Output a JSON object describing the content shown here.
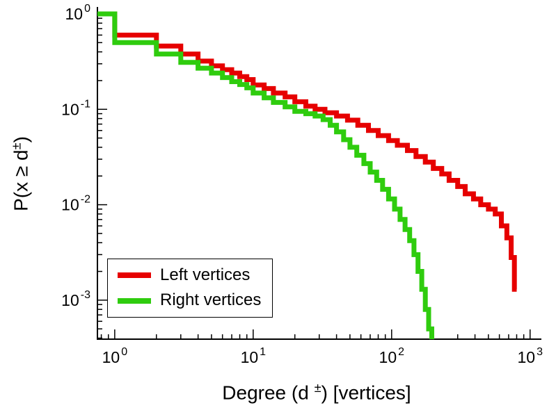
{
  "figure": {
    "background": "#ffffff"
  },
  "chart_data": {
    "type": "line",
    "subtype": "step-ccdf",
    "title": "",
    "x_scale": "log",
    "y_scale": "log",
    "grid": false,
    "legend_position": "lower-left",
    "xlim": [
      0.75,
      1100
    ],
    "ylim": [
      0.00039,
      1.0
    ],
    "xlabel_parts": {
      "prefix": "Degree (d ",
      "sup": "±",
      "suffix": ") [vertices]"
    },
    "ylabel_parts": {
      "prefix": "P(x ≥ d",
      "sup": "±",
      "suffix": ")"
    },
    "x_ticks": [
      {
        "value": 1,
        "base": "10",
        "exp": "0"
      },
      {
        "value": 10,
        "base": "10",
        "exp": "1"
      },
      {
        "value": 100,
        "base": "10",
        "exp": "2"
      },
      {
        "value": 1000,
        "base": "10",
        "exp": "3"
      }
    ],
    "y_ticks": [
      {
        "value": 1,
        "base": "10",
        "exp": "0"
      },
      {
        "value": 0.1,
        "base": "10",
        "exp": "-1"
      },
      {
        "value": 0.01,
        "base": "10",
        "exp": "-2"
      },
      {
        "value": 0.001,
        "base": "10",
        "exp": "-3"
      }
    ],
    "series": [
      {
        "id": "left-vertices",
        "name": "Left vertices",
        "color": "#e60000",
        "points": [
          [
            1,
            1.0
          ],
          [
            2,
            0.6
          ],
          [
            3,
            0.46
          ],
          [
            4,
            0.38
          ],
          [
            5,
            0.32
          ],
          [
            6,
            0.285
          ],
          [
            7,
            0.26
          ],
          [
            8,
            0.24
          ],
          [
            9,
            0.22
          ],
          [
            10,
            0.205
          ],
          [
            12,
            0.18
          ],
          [
            14,
            0.165
          ],
          [
            17,
            0.148
          ],
          [
            20,
            0.135
          ],
          [
            24,
            0.12
          ],
          [
            28,
            0.108
          ],
          [
            33,
            0.1
          ],
          [
            40,
            0.092
          ],
          [
            48,
            0.085
          ],
          [
            57,
            0.077
          ],
          [
            68,
            0.068
          ],
          [
            80,
            0.06
          ],
          [
            95,
            0.053
          ],
          [
            110,
            0.047
          ],
          [
            130,
            0.042
          ],
          [
            150,
            0.037
          ],
          [
            175,
            0.032
          ],
          [
            200,
            0.028
          ],
          [
            230,
            0.024
          ],
          [
            260,
            0.021
          ],
          [
            300,
            0.018
          ],
          [
            340,
            0.0155
          ],
          [
            390,
            0.013
          ],
          [
            440,
            0.0115
          ],
          [
            500,
            0.01
          ],
          [
            560,
            0.009
          ],
          [
            620,
            0.008
          ],
          [
            680,
            0.006
          ],
          [
            730,
            0.0045
          ],
          [
            770,
            0.0028
          ],
          [
            800,
            0.0013
          ]
        ]
      },
      {
        "id": "right-vertices",
        "name": "Right vertices",
        "color": "#2fcc0e",
        "points": [
          [
            1,
            1.0
          ],
          [
            2,
            0.5
          ],
          [
            3,
            0.38
          ],
          [
            4,
            0.31
          ],
          [
            5,
            0.27
          ],
          [
            6,
            0.24
          ],
          [
            7,
            0.215
          ],
          [
            8,
            0.195
          ],
          [
            9,
            0.182
          ],
          [
            10,
            0.168
          ],
          [
            12,
            0.148
          ],
          [
            14,
            0.132
          ],
          [
            17,
            0.118
          ],
          [
            20,
            0.106
          ],
          [
            24,
            0.095
          ],
          [
            28,
            0.09
          ],
          [
            32,
            0.085
          ],
          [
            36,
            0.078
          ],
          [
            40,
            0.068
          ],
          [
            45,
            0.058
          ],
          [
            50,
            0.048
          ],
          [
            56,
            0.04
          ],
          [
            63,
            0.033
          ],
          [
            70,
            0.027
          ],
          [
            78,
            0.022
          ],
          [
            86,
            0.018
          ],
          [
            95,
            0.0145
          ],
          [
            105,
            0.0115
          ],
          [
            115,
            0.009
          ],
          [
            125,
            0.007
          ],
          [
            135,
            0.0055
          ],
          [
            145,
            0.0042
          ],
          [
            155,
            0.003
          ],
          [
            165,
            0.002
          ],
          [
            175,
            0.0013
          ],
          [
            185,
            0.0008
          ],
          [
            195,
            0.0005
          ],
          [
            200,
            0.00035
          ],
          [
            205,
            0.00025
          ]
        ]
      }
    ]
  }
}
